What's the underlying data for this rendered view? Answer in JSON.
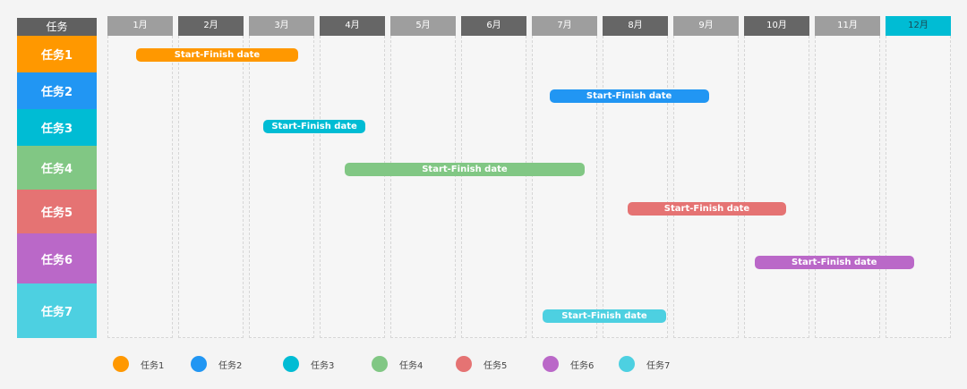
{
  "corner_label": "任务",
  "months": [
    "1月",
    "2月",
    "3月",
    "4月",
    "5月",
    "6月",
    "7月",
    "8月",
    "9月",
    "10月",
    "11月",
    "12月"
  ],
  "month_colors": [
    "#9e9e9e",
    "#666666",
    "#9e9e9e",
    "#666666",
    "#9e9e9e",
    "#666666",
    "#9e9e9e",
    "#666666",
    "#9e9e9e",
    "#666666",
    "#9e9e9e",
    "#00bcd4"
  ],
  "tasks": [
    {
      "label": "任务1",
      "color": "#ff9800",
      "bar_label": "Start-Finish date",
      "start_month": 1.4,
      "end_month": 3.7
    },
    {
      "label": "任务2",
      "color": "#2196f3",
      "bar_label": "Start-Finish date",
      "start_month": 7.25,
      "end_month": 9.5
    },
    {
      "label": "任务3",
      "color": "#00bcd4",
      "bar_label": "Start-Finish date",
      "start_month": 3.2,
      "end_month": 4.65
    },
    {
      "label": "任务4",
      "color": "#81c784",
      "bar_label": "Start-Finish date",
      "start_month": 4.35,
      "end_month": 7.75
    },
    {
      "label": "任务5",
      "color": "#e57373",
      "bar_label": "Start-Finish date",
      "start_month": 8.35,
      "end_month": 10.6
    },
    {
      "label": "任务6",
      "color": "#ba68c8",
      "bar_label": "Start-Finish date",
      "start_month": 10.15,
      "end_month": 12.4
    },
    {
      "label": "任务7",
      "color": "#4dd0e1",
      "bar_label": "Start-Finish date",
      "start_month": 7.15,
      "end_month": 8.9
    }
  ]
}
